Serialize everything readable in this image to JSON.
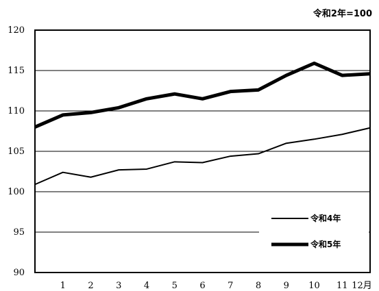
{
  "chart_data": {
    "type": "line",
    "title": "",
    "note": "令和2年=100",
    "xlabel": "",
    "ylabel": "",
    "categories": [
      "",
      "1",
      "2",
      "3",
      "4",
      "5",
      "6",
      "7",
      "8",
      "9",
      "10",
      "11",
      "12月"
    ],
    "ylim": [
      90,
      120
    ],
    "yticks": [
      "90",
      "95",
      "100",
      "105",
      "110",
      "115",
      "120"
    ],
    "grid": true,
    "legend_position": "bottom-right",
    "series": [
      {
        "name": "令和4年",
        "color": "#000000",
        "values": [
          100.9,
          102.4,
          101.8,
          102.7,
          102.8,
          103.7,
          103.6,
          104.4,
          104.7,
          106.0,
          106.5,
          107.1,
          107.9
        ]
      },
      {
        "name": "令和5年",
        "color": "#000000",
        "values": [
          108.0,
          109.5,
          109.8,
          110.4,
          111.5,
          112.1,
          111.5,
          112.4,
          112.6,
          114.4,
          115.9,
          114.4,
          114.6
        ]
      }
    ]
  }
}
